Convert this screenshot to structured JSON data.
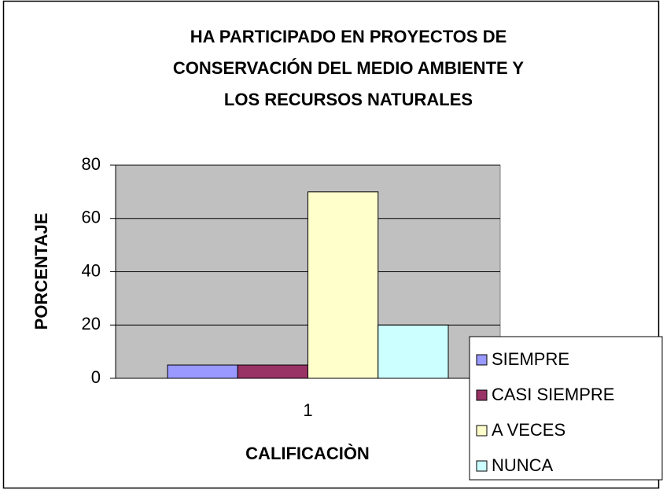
{
  "chart_data": {
    "type": "bar",
    "title": [
      "HA PARTICIPADO EN PROYECTOS DE",
      "CONSERVACIÓN DEL MEDIO AMBIENTE Y",
      "LOS RECURSOS NATURALES"
    ],
    "x_label": "CALIFICACIÒN",
    "y_label": "PORCENTAJE",
    "categories": [
      "1"
    ],
    "series": [
      {
        "name": "SIEMPRE",
        "color": "#9999ff",
        "values": [
          5
        ]
      },
      {
        "name": "CASI SIEMPRE",
        "color": "#993366",
        "values": [
          5
        ]
      },
      {
        "name": "A VECES",
        "color": "#ffffcc",
        "values": [
          70
        ]
      },
      {
        "name": "NUNCA",
        "color": "#ccffff",
        "values": [
          20
        ]
      }
    ],
    "ylim": [
      0,
      80
    ],
    "yticks": [
      0,
      20,
      40,
      60,
      80
    ],
    "grid": true,
    "legend": "right"
  }
}
